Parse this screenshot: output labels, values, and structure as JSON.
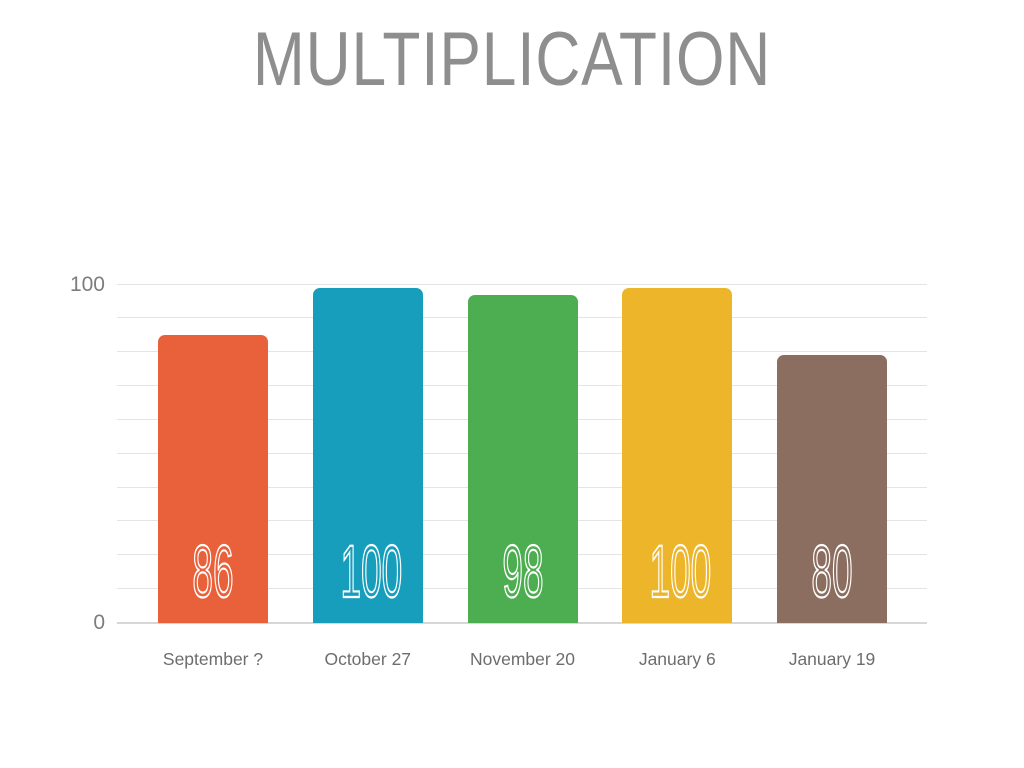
{
  "title": "MULTIPLICATION",
  "chart_data": {
    "type": "bar",
    "title": "MULTIPLICATION",
    "categories": [
      "September ?",
      "October 27",
      "November 20",
      "January 6",
      "January 19"
    ],
    "values": [
      86,
      100,
      98,
      100,
      80
    ],
    "bar_colors": [
      "#e8613b",
      "#179ebc",
      "#4cae50",
      "#ecb52a",
      "#8c6e60"
    ],
    "value_labels": [
      "86",
      "100",
      "98",
      "100",
      "80"
    ],
    "y_axis_labels": [
      "100",
      "0"
    ],
    "ylim": [
      0,
      100
    ],
    "gridline_step": 10,
    "grid": true,
    "legend": "none",
    "xlabel": "",
    "ylabel": "",
    "value_label_position": "inside-bottom"
  },
  "colors": {
    "background": "#ffffff",
    "title_text": "#8e8e8e",
    "axis_label_text": "#7d7d7d",
    "category_label_text": "#6d6d6d",
    "gridline": "#e4e4e4",
    "baseline": "#d7d7d7",
    "bar_value_text": "#ffffff"
  }
}
